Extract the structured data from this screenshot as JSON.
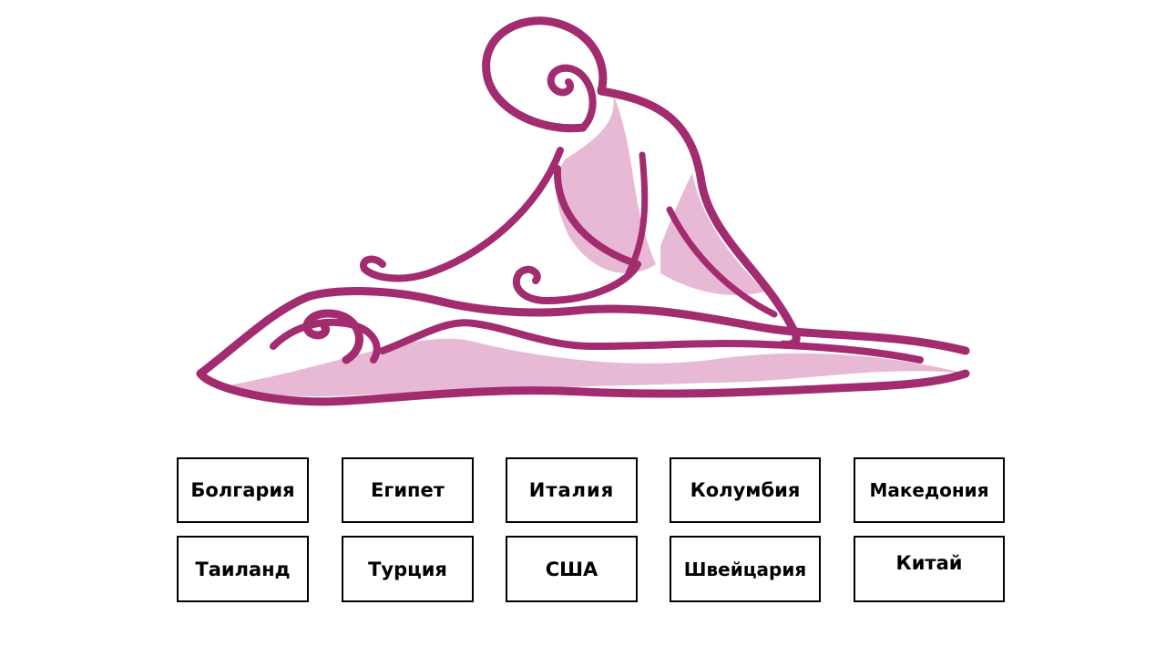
{
  "colors": {
    "logo_primary": "#A32B6F",
    "logo_light": "#E8B9D4",
    "button_border": "#000000",
    "button_text": "#000000",
    "background": "#FFFFFF"
  },
  "logo": {
    "icon": "massage-logo-icon"
  },
  "countries": [
    "Болгария",
    "Египет",
    "Италия",
    "Колумбия",
    "Македония",
    "Таиланд",
    "Турция",
    "США",
    "Швейцария",
    "Китай"
  ]
}
